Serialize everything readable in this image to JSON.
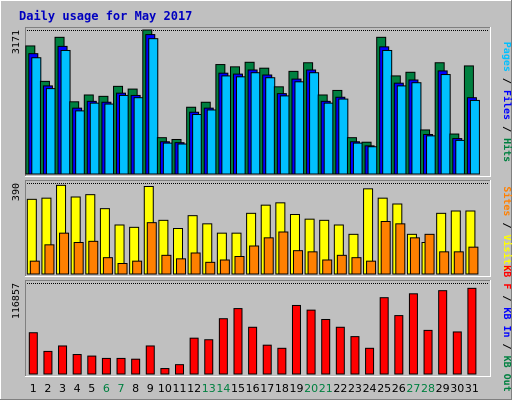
{
  "chart_data": {
    "type": "bar",
    "title": "Daily usage for May 2017",
    "categories": [
      "1",
      "2",
      "3",
      "4",
      "5",
      "6",
      "7",
      "8",
      "9",
      "10",
      "11",
      "12",
      "13",
      "14",
      "15",
      "16",
      "17",
      "18",
      "19",
      "20",
      "21",
      "22",
      "23",
      "24",
      "25",
      "26",
      "27",
      "28",
      "29",
      "30",
      "31"
    ],
    "weekend_days": [
      "6",
      "7",
      "13",
      "14",
      "20",
      "21",
      "27",
      "28"
    ],
    "panels": [
      {
        "id": "hits",
        "ymax_label": "3171",
        "ymax": 3171,
        "legend": [
          {
            "text": "Pages",
            "color": "#00c0ff"
          },
          {
            "text": "Files",
            "color": "#0000ff"
          },
          {
            "text": "Hits",
            "color": "#008040"
          }
        ],
        "separator": " / ",
        "series": [
          {
            "name": "Hits",
            "color": "#008040",
            "values": [
              2820,
              2040,
              3010,
              1590,
              1740,
              1710,
              1930,
              1870,
              3170,
              800,
              760,
              1470,
              1580,
              2410,
              2360,
              2460,
              2330,
              1920,
              2260,
              2450,
              1740,
              1840,
              800,
              700,
              3010,
              2160,
              2240,
              970,
              2450,
              880,
              2380
            ]
          },
          {
            "name": "Files",
            "color": "#0000ff",
            "values": [
              2650,
              1940,
              2810,
              1450,
              1600,
              1580,
              1780,
              1730,
              3070,
              710,
              690,
              1360,
              1450,
              2220,
              2200,
              2290,
              2180,
              1770,
              2090,
              2290,
              1600,
              1690,
              710,
              620,
              2800,
              2000,
              2070,
              870,
              2270,
              780,
              1680
            ]
          },
          {
            "name": "Pages",
            "color": "#00c0ff",
            "values": [
              2560,
              1880,
              2720,
              1390,
              1560,
              1540,
              1730,
              1680,
              2980,
              680,
              660,
              1310,
              1410,
              2160,
              2140,
              2230,
              2120,
              1720,
              2030,
              2230,
              1560,
              1650,
              680,
              600,
              2720,
              1940,
              2010,
              840,
              2190,
              740,
              1620
            ]
          }
        ]
      },
      {
        "id": "visits",
        "ymax_label": "390",
        "ymax": 390,
        "legend": [
          {
            "text": "Sites",
            "color": "#ff8000"
          },
          {
            "text": "Visits",
            "color": "#ffff00"
          }
        ],
        "separator": " / ",
        "series": [
          {
            "name": "Visits",
            "color": "#ffff00",
            "values": [
              320,
              325,
              380,
              330,
              340,
              280,
              210,
              200,
              375,
              230,
              195,
              250,
              215,
              175,
              175,
              260,
              295,
              305,
              255,
              235,
              230,
              210,
              170,
              365,
              325,
              300,
              170,
              135,
              260,
              270,
              270
            ]
          },
          {
            "name": "Sites",
            "color": "#ff8000",
            "values": [
              55,
              125,
              175,
              135,
              140,
              70,
              45,
              55,
              220,
              80,
              65,
              90,
              50,
              60,
              75,
              120,
              155,
              180,
              100,
              95,
              60,
              80,
              70,
              55,
              225,
              215,
              155,
              170,
              95,
              95,
              115
            ]
          }
        ]
      },
      {
        "id": "kbytes",
        "ymax_label": "116857",
        "ymax": 116857,
        "legend": [
          {
            "text": "KB F",
            "color": "#ff0000"
          },
          {
            "text": "KB In",
            "color": "#0000ff"
          },
          {
            "text": "KB Out",
            "color": "#008040"
          }
        ],
        "separator": " / ",
        "series": [
          {
            "name": "KB F",
            "color": "#ff0000",
            "values": [
              53000,
              29000,
              36000,
              25000,
              23000,
              20000,
              20000,
              19000,
              36000,
              7000,
              12000,
              46000,
              44000,
              71000,
              84000,
              60000,
              37000,
              33000,
              88000,
              82000,
              70000,
              60000,
              48000,
              33000,
              98000,
              75000,
              103000,
              56000,
              107000,
              54000,
              110000
            ]
          }
        ]
      }
    ]
  }
}
